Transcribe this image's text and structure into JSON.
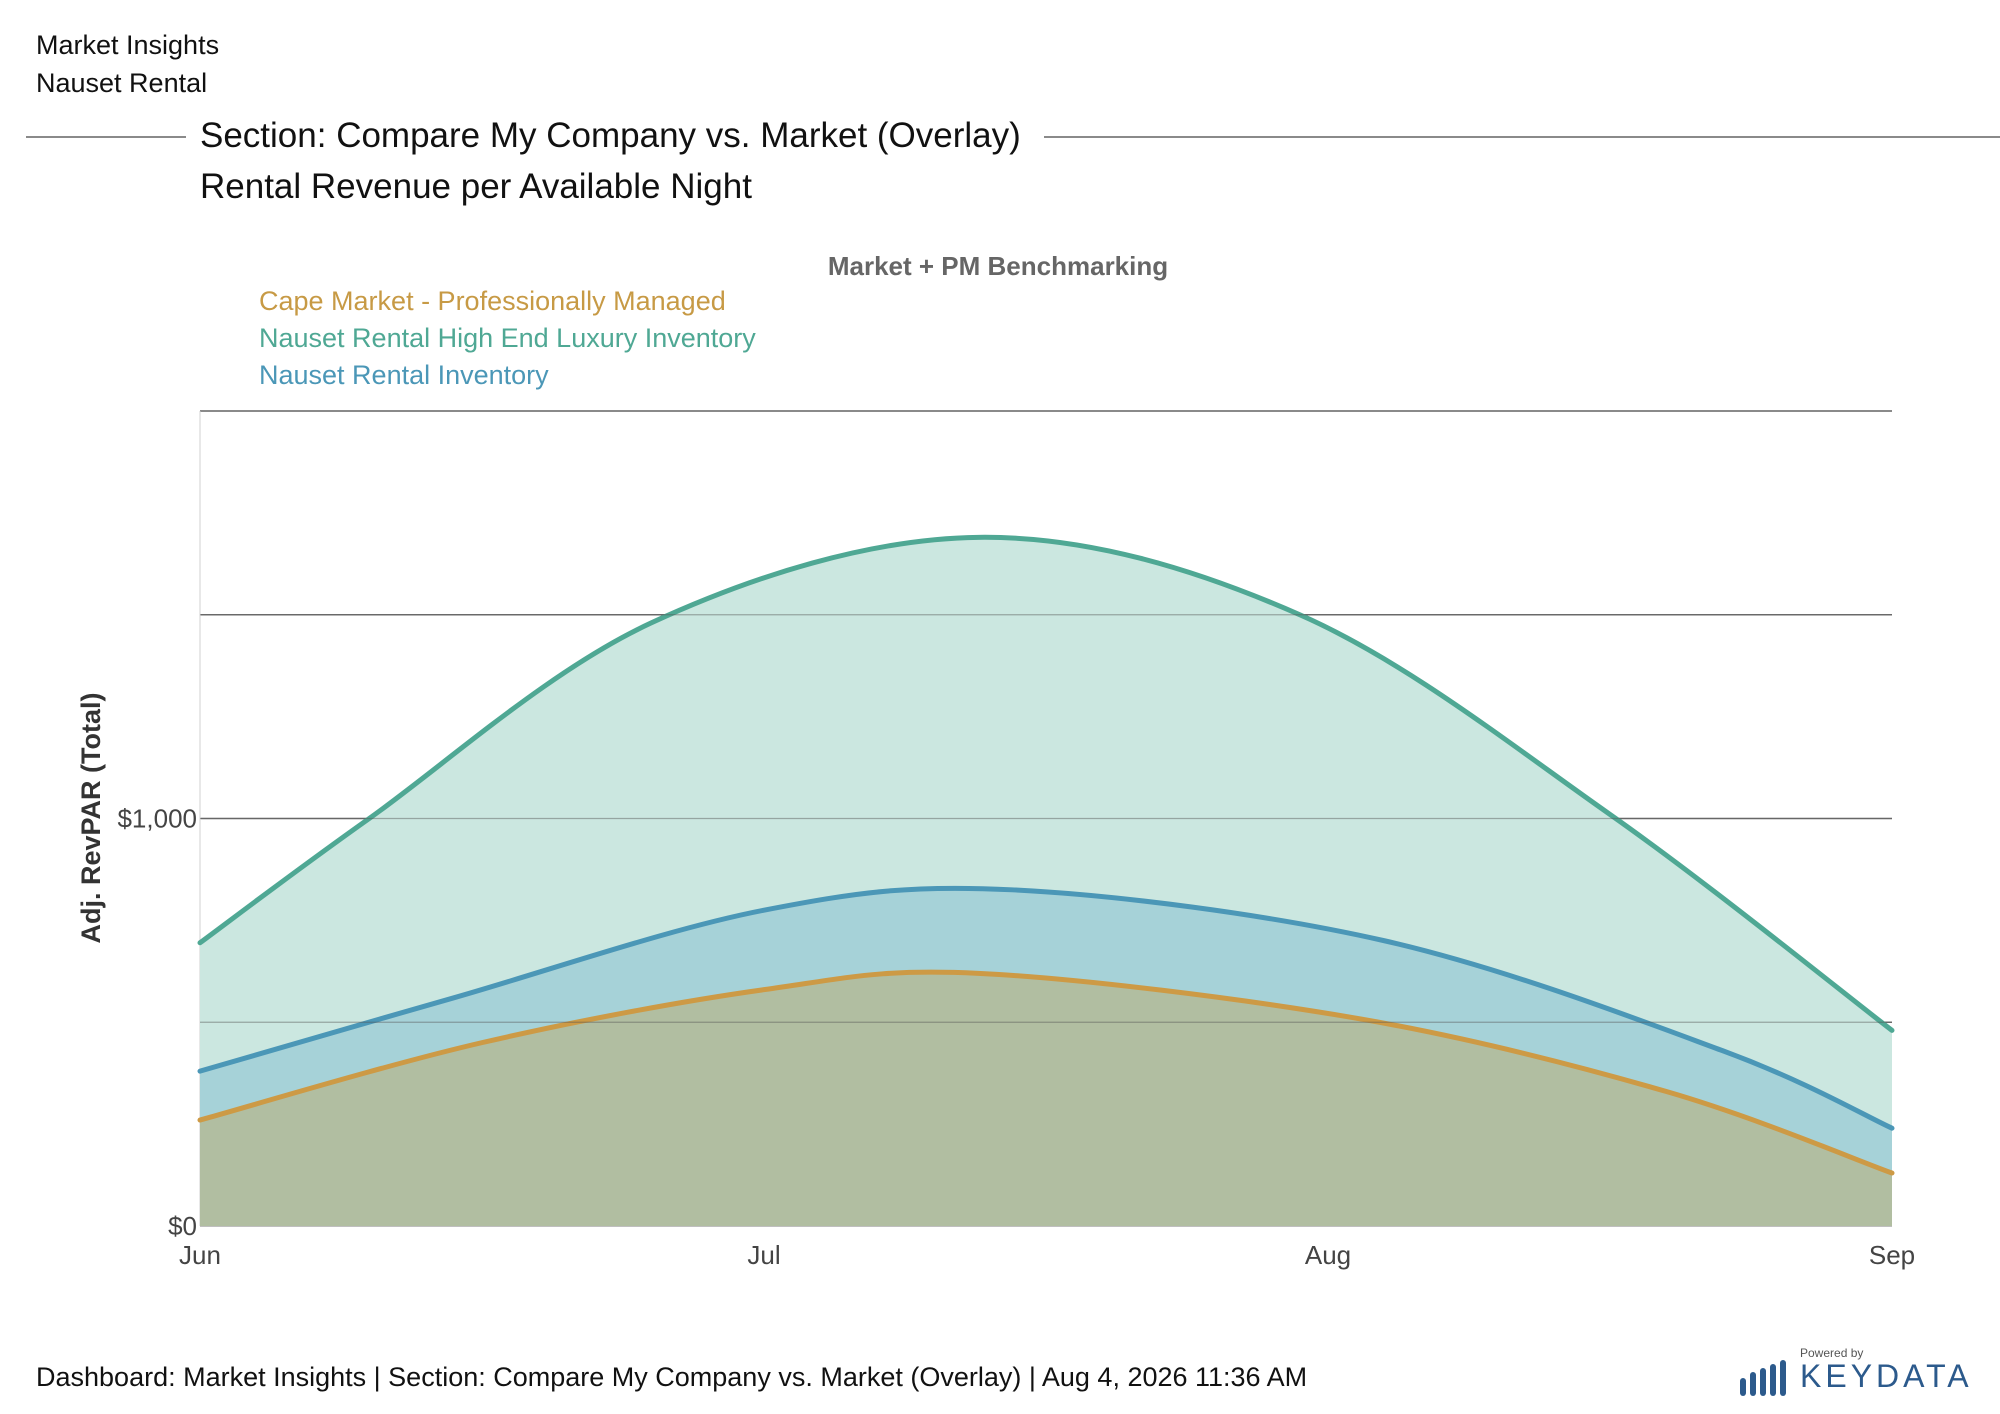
{
  "header": {
    "line1": "Market Insights",
    "line2": "Nauset Rental"
  },
  "section": {
    "title": "Section: Compare My Company vs. Market (Overlay)",
    "subtitle": "Rental Revenue per Available Night"
  },
  "footer": {
    "text": "Dashboard: Market Insights | Section: Compare My Company vs. Market (Overlay) | Aug 4, 2026 11:36 AM"
  },
  "logo": {
    "small": "Powered by",
    "text": "KEYDATA"
  },
  "chart_data": {
    "type": "area",
    "title": "Market + PM Benchmarking",
    "xlabel": "",
    "ylabel": "Adj. RevPAR (Total)",
    "x": [
      "Jun",
      "Jul",
      "Aug",
      "Sep"
    ],
    "ylim": [
      0,
      2000
    ],
    "yticks": [
      0,
      1000
    ],
    "ytick_labels": [
      "$0",
      "$1,000"
    ],
    "grid": true,
    "legend_position": "top-left",
    "series": [
      {
        "name": "Nauset Rental High End Luxury Inventory",
        "color": "#4fa894",
        "fill": "#cbe7e0",
        "points": [
          [
            0,
            695
          ],
          [
            0.3,
            1000
          ],
          [
            0.8,
            1480
          ],
          [
            1.38,
            1690
          ],
          [
            1.95,
            1500
          ],
          [
            2.5,
            1010
          ],
          [
            3,
            480
          ]
        ]
      },
      {
        "name": "Nauset Rental Inventory",
        "color": "#4b97b7",
        "fill": "#a6d2d8",
        "points": [
          [
            0,
            380
          ],
          [
            0.45,
            560
          ],
          [
            1.0,
            775
          ],
          [
            1.44,
            825
          ],
          [
            2.1,
            700
          ],
          [
            2.7,
            430
          ],
          [
            3,
            240
          ]
        ]
      },
      {
        "name": "Cape Market - Professionally Managed",
        "color": "#cd9a45",
        "fill": "#b1bea1",
        "points": [
          [
            0,
            260
          ],
          [
            0.5,
            450
          ],
          [
            1.0,
            580
          ],
          [
            1.38,
            620
          ],
          [
            2.05,
            510
          ],
          [
            2.6,
            330
          ],
          [
            3,
            130
          ]
        ]
      }
    ],
    "legend_order": [
      "Cape Market - Professionally Managed",
      "Nauset Rental High End Luxury Inventory",
      "Nauset Rental Inventory"
    ]
  }
}
